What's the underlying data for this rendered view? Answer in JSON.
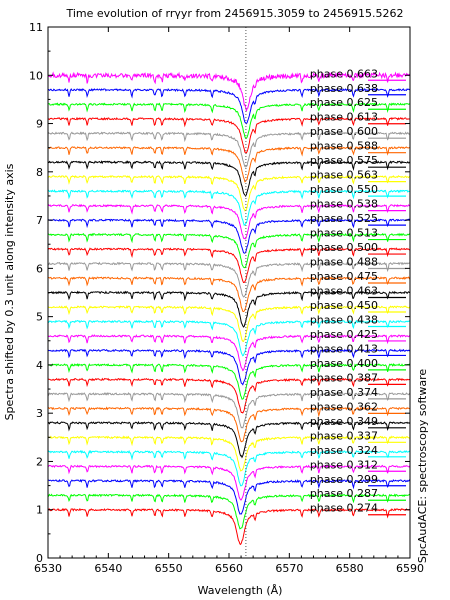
{
  "chart_data": {
    "type": "line",
    "title": "Time evolution of rrγyr from 2456915.3059 to 2456915.5262",
    "xlabel": "Wavelength (Å)",
    "ylabel": "Spectra shifted by 0.3 unit along intensity axis",
    "side_label": "SpcAudACE: spectroscopy software",
    "xlim": [
      6530,
      6590
    ],
    "ylim": [
      0,
      11
    ],
    "xticks": [
      "6530",
      "6540",
      "6550",
      "6560",
      "6570",
      "6580",
      "6590"
    ],
    "yticks": [
      "0",
      "1",
      "2",
      "3",
      "4",
      "5",
      "6",
      "7",
      "8",
      "9",
      "10",
      "11"
    ],
    "reference_line_x": 6562.8,
    "grid": false,
    "profile": {
      "continuum_step": 0.3,
      "first_continuum": 1.0,
      "line_center_start": 6561.9,
      "line_center_end": 6562.9,
      "line_depth": 0.7
    },
    "series": [
      {
        "name": "phase 0.274",
        "color": "#ff0000"
      },
      {
        "name": "phase 0.287",
        "color": "#00ff00"
      },
      {
        "name": "phase 0.299",
        "color": "#0000ff"
      },
      {
        "name": "phase 0.312",
        "color": "#ff00ff"
      },
      {
        "name": "phase 0.324",
        "color": "#00ffff"
      },
      {
        "name": "phase 0.337",
        "color": "#ffff00"
      },
      {
        "name": "phase 0.349",
        "color": "#000000"
      },
      {
        "name": "phase 0.362",
        "color": "#ff6600"
      },
      {
        "name": "phase 0.374",
        "color": "#999999"
      },
      {
        "name": "phase 0.387",
        "color": "#ff0000"
      },
      {
        "name": "phase 0.400",
        "color": "#00ff00"
      },
      {
        "name": "phase 0.413",
        "color": "#0000ff"
      },
      {
        "name": "phase 0.425",
        "color": "#ff00ff"
      },
      {
        "name": "phase 0.438",
        "color": "#00ffff"
      },
      {
        "name": "phase 0.450",
        "color": "#ffff00"
      },
      {
        "name": "phase 0.463",
        "color": "#000000"
      },
      {
        "name": "phase 0.475",
        "color": "#ff6600"
      },
      {
        "name": "phase 0.488",
        "color": "#999999"
      },
      {
        "name": "phase 0.500",
        "color": "#ff0000"
      },
      {
        "name": "phase 0.513",
        "color": "#00ff00"
      },
      {
        "name": "phase 0.525",
        "color": "#0000ff"
      },
      {
        "name": "phase 0.538",
        "color": "#ff00ff"
      },
      {
        "name": "phase 0.550",
        "color": "#00ffff"
      },
      {
        "name": "phase 0.563",
        "color": "#ffff00"
      },
      {
        "name": "phase 0.575",
        "color": "#000000"
      },
      {
        "name": "phase 0.588",
        "color": "#ff6600"
      },
      {
        "name": "phase 0.600",
        "color": "#999999"
      },
      {
        "name": "phase 0.613",
        "color": "#ff0000"
      },
      {
        "name": "phase 0.625",
        "color": "#00ff00"
      },
      {
        "name": "phase 0.638",
        "color": "#0000ff"
      },
      {
        "name": "phase 0.663",
        "color": "#ff00ff"
      }
    ]
  }
}
